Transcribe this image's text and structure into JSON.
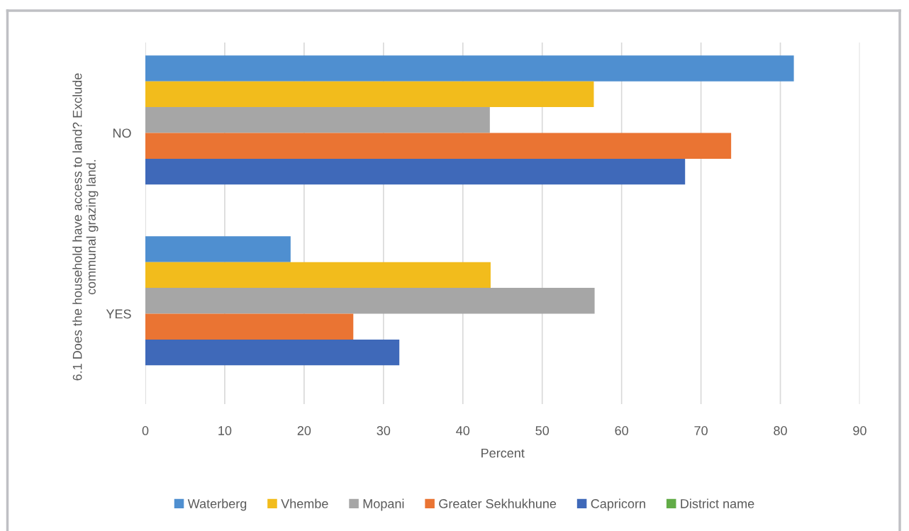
{
  "chart_data": {
    "type": "bar",
    "orientation": "horizontal",
    "categories": [
      "NO",
      "YES"
    ],
    "series": [
      {
        "name": "Waterberg",
        "color": "#4f8fd0",
        "values": [
          81.7,
          18.3
        ]
      },
      {
        "name": "Vhembe",
        "color": "#f2bc1c",
        "values": [
          56.5,
          43.5
        ]
      },
      {
        "name": "Mopani",
        "color": "#a6a6a6",
        "values": [
          43.4,
          56.6
        ]
      },
      {
        "name": "Greater Sekhukhune",
        "color": "#ea7433",
        "values": [
          73.8,
          26.2
        ]
      },
      {
        "name": "Capricorn",
        "color": "#3f69b9",
        "values": [
          68.0,
          32.0
        ]
      },
      {
        "name": "District name",
        "color": "#62ac47",
        "values": [
          null,
          null
        ]
      }
    ],
    "xlabel": "Percent",
    "ylabel": "6.1 Does the household have access to land? Exclude\ncommunal grazing land.",
    "xlim": [
      0,
      90
    ],
    "xticks": [
      0,
      10,
      20,
      30,
      40,
      50,
      60,
      70,
      80,
      90
    ],
    "grid": "x",
    "legend": "bottom"
  }
}
